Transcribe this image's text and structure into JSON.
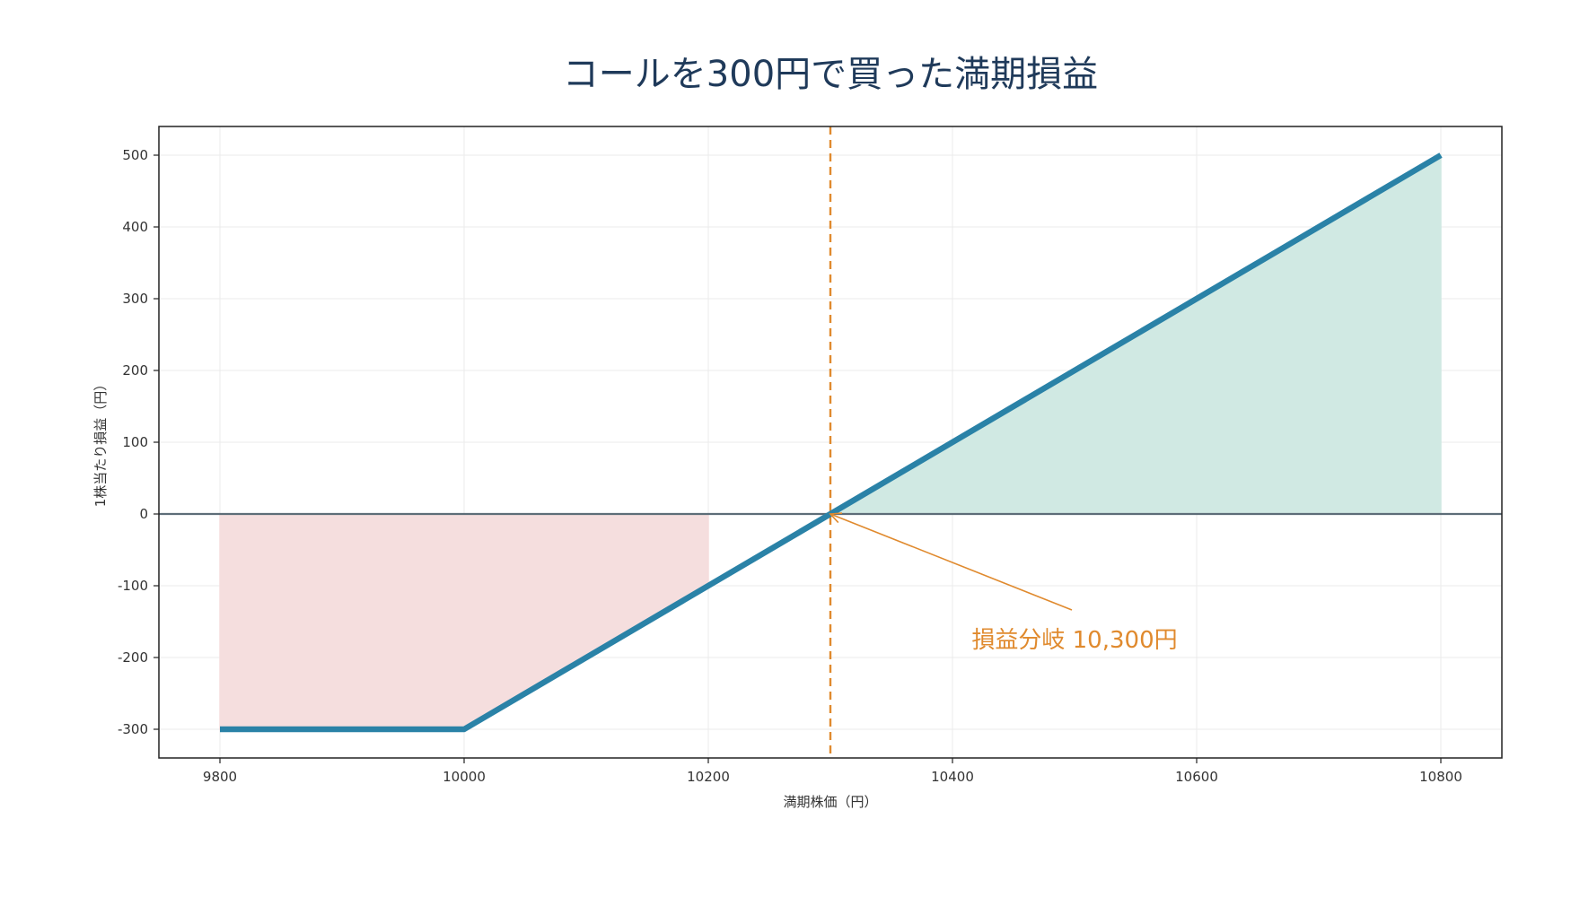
{
  "chart_data": {
    "type": "line",
    "title": "コールを300円で買った満期損益",
    "xlabel": "満期株価（円）",
    "ylabel": "1株当たり損益（円）",
    "xlim": [
      9750,
      10850
    ],
    "ylim": [
      -340,
      540
    ],
    "xticks": [
      9800,
      10000,
      10200,
      10400,
      10600,
      10800
    ],
    "yticks": [
      500,
      400,
      300,
      200,
      100,
      0,
      -100,
      -200,
      -300
    ],
    "grid": true,
    "series": [
      {
        "x": [
          9800,
          10000,
          10800
        ],
        "y": [
          -300,
          -300,
          500
        ]
      }
    ],
    "loss_region": {
      "x": [
        9800,
        10000,
        10200
      ],
      "y": [
        -300,
        -300,
        -100
      ]
    },
    "profit_region": {
      "x": [
        10300,
        10800
      ],
      "y": [
        0,
        500
      ]
    },
    "breakeven": {
      "x": 10300,
      "label": "損益分岐 10,300円",
      "label_pos": [
        10500,
        -175
      ]
    },
    "colors": {
      "line": "#2a82a7",
      "loss_fill": "#f5dede",
      "profit_fill": "#d0e9e3",
      "breakeven": "#e08a2e",
      "zero_line": "#5d6d78",
      "grid": "#ebebeb",
      "title": "#1f3a5a"
    }
  }
}
